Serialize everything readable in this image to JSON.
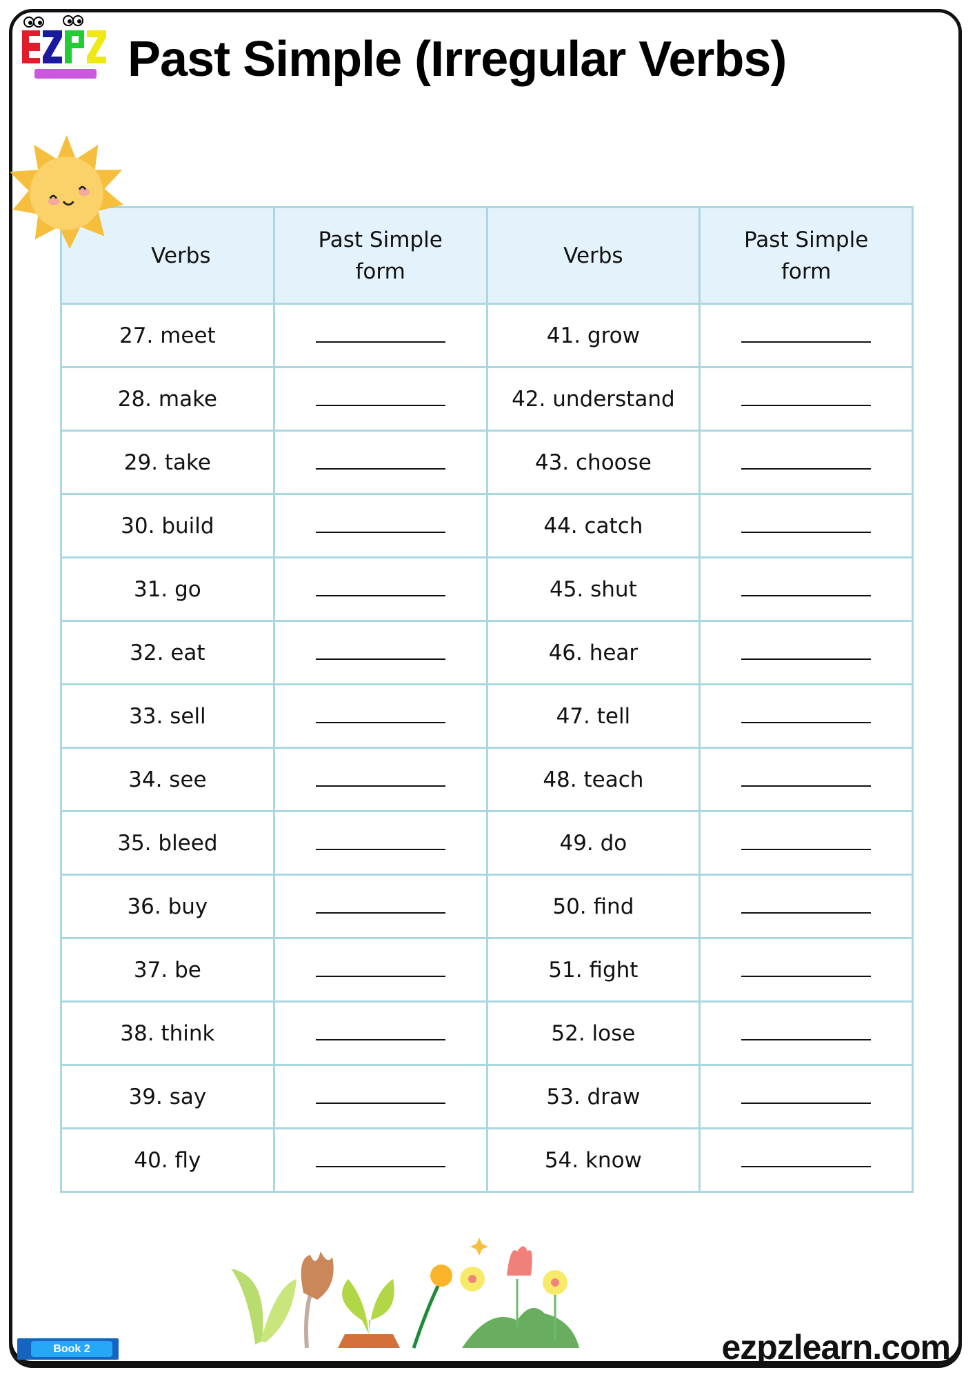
{
  "title": "Past Simple (Irregular Verbs)",
  "logo": {
    "text": "EZPZ learn"
  },
  "table": {
    "headers": [
      "Verbs",
      "Past Simple form",
      "Verbs",
      "Past Simple form"
    ],
    "rows": [
      [
        "27. meet",
        "41. grow"
      ],
      [
        "28. make",
        "42. understand"
      ],
      [
        "29. take",
        "43. choose"
      ],
      [
        "30. build",
        "44. catch"
      ],
      [
        "31. go",
        "45. shut"
      ],
      [
        "32. eat",
        "46. hear"
      ],
      [
        "33. sell",
        "47. tell"
      ],
      [
        "34. see",
        "48. teach"
      ],
      [
        "35. bleed",
        "49. do"
      ],
      [
        "36. buy",
        "50. find"
      ],
      [
        "37. be",
        "51. fight"
      ],
      [
        "38. think",
        "52. lose"
      ],
      [
        "39. say",
        "53. draw"
      ],
      [
        "40. fly",
        "54. know"
      ]
    ]
  },
  "footer": {
    "book_label": "Book 2",
    "website": "ezpzlearn.com"
  },
  "colors": {
    "table_border": "#a9d8e2",
    "header_bg": "#e4f3fb",
    "book_badge": "#1565c0"
  }
}
